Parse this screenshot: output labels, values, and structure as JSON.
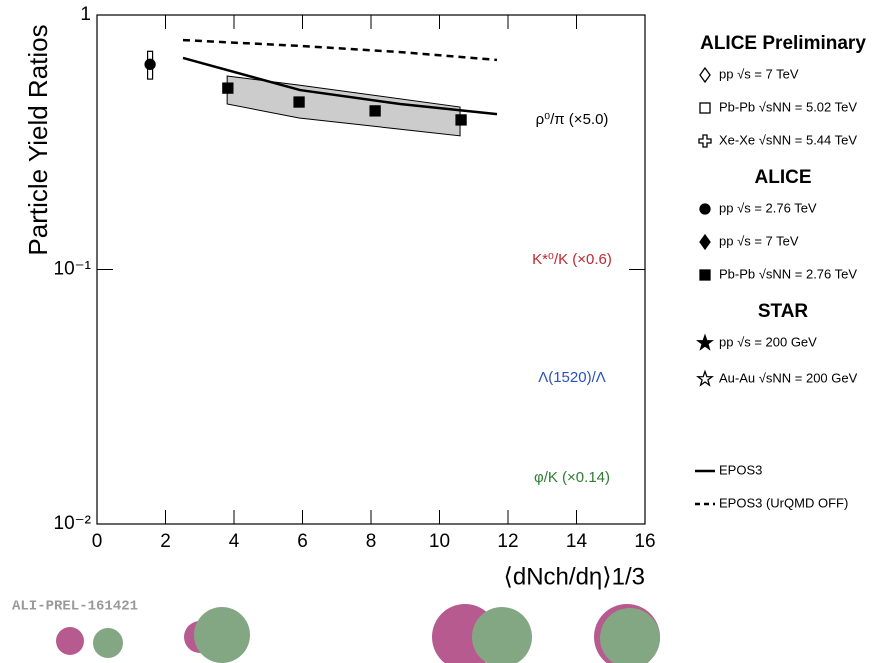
{
  "chart_data": {
    "type": "scatter",
    "y_label": "Particle Yield Ratios",
    "x_label": "⟨dNch/dη⟩1/3",
    "watermark": "ALI-PREL-161421",
    "log_y": true,
    "xlim": [
      0,
      16
    ],
    "xticks": [
      0,
      2,
      4,
      6,
      8,
      10,
      12,
      14,
      16
    ],
    "ylim": [
      0.01,
      1
    ],
    "yticks": [
      {
        "value": 0.01,
        "label": "10⁻²"
      },
      {
        "value": 0.1,
        "label": "10⁻¹"
      },
      1
    ],
    "series": [
      {
        "marker": "circle",
        "color": "#000000",
        "x": [
          1.55
        ],
        "values": [
          0.64
        ],
        "errors": [
          0.08
        ]
      },
      {
        "marker": "square",
        "color": "#000000",
        "x": [
          3.82,
          5.9,
          8.12,
          10.63
        ],
        "values": [
          0.516,
          0.455,
          0.42,
          0.387
        ]
      }
    ],
    "lines": [
      {
        "style": "solid",
        "color": "#000000",
        "x": [
          2.51,
          5.93,
          8.85,
          11.68
        ],
        "values": [
          0.678,
          0.507,
          0.447,
          0.408
        ]
      },
      {
        "style": "dashed",
        "color": "#000000",
        "x": [
          2.51,
          5.93,
          8.85,
          11.68
        ],
        "values": [
          0.797,
          0.756,
          0.715,
          0.666
        ]
      }
    ],
    "band": {
      "color": "#cccccc",
      "x": [
        3.8,
        5.9,
        10.6
      ],
      "upper": [
        0.576,
        0.53,
        0.435
      ],
      "lower": [
        0.447,
        0.394,
        0.335
      ]
    },
    "annotations": [
      {
        "text": "ρ⁰/π (×5.0)",
        "color": "#000000"
      },
      {
        "text": "K*⁰/K (×0.6)",
        "color": "#c0282d"
      },
      {
        "text": "Λ(1520)/Λ",
        "color": "#2a52be"
      },
      {
        "text": "φ/K (×0.14)",
        "color": "#2e7d32"
      }
    ],
    "legend": [
      {
        "title": "ALICE Preliminary",
        "items": [
          {
            "label": "pp √s = 7 TeV",
            "marker": "open-diamond"
          },
          {
            "label": "Pb-Pb √sNN = 5.02 TeV",
            "marker": "open-square"
          },
          {
            "label": "Xe-Xe √sNN = 5.44 TeV",
            "marker": "open-cross"
          }
        ]
      },
      {
        "title": "ALICE",
        "items": [
          {
            "label": "pp √s = 2.76 TeV",
            "marker": "circle"
          },
          {
            "label": "pp √s = 7 TeV",
            "marker": "diamond"
          },
          {
            "label": "Pb-Pb √sNN = 2.76 TeV",
            "marker": "square"
          }
        ]
      },
      {
        "title": "STAR",
        "items": [
          {
            "label": "pp √s = 200 GeV",
            "marker": "star"
          },
          {
            "label": "Au-Au √sNN = 200 GeV",
            "marker": "open-star"
          }
        ]
      },
      {
        "items": [
          {
            "label": "EPOS3",
            "marker": "solid-line"
          },
          {
            "label": "EPOS3 (UrQMD OFF)",
            "marker": "dashed-line"
          }
        ]
      }
    ]
  }
}
